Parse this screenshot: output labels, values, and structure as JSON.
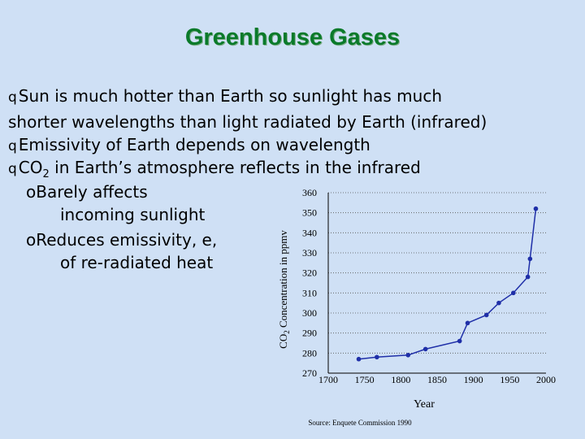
{
  "slide": {
    "title": "Greenhouse Gases",
    "bullets": [
      {
        "line1": "Sun is much hotter than Earth so sunlight has much",
        "line2": "shorter wavelengths than light radiated by Earth (infrared)"
      },
      {
        "line1": "Emissivity of Earth depends on wavelength"
      },
      {
        "line1_pre": "CO",
        "line1_sub": "2",
        "line1_post": " in Earth’s atmosphere reflects in the infrared"
      }
    ],
    "subbullets": [
      {
        "line1": "Barely affects",
        "line2": "incoming sunlight"
      },
      {
        "line1": "Reduces emissivity, e,",
        "line2": "of re-radiated heat"
      }
    ],
    "bullet_marker": "q",
    "subbullet_marker": "o",
    "title_color": "#0a7a2a",
    "background_color": "#cfe0f5"
  },
  "chart_data": {
    "type": "line",
    "xlabel": "Year",
    "ylabel_pre": "CO",
    "ylabel_sub": "2",
    "ylabel_post": " Concentration in ppmv",
    "source": "Source: Enquete Commission 1990",
    "xlim": [
      1700,
      2000
    ],
    "ylim": [
      270,
      360
    ],
    "x_ticks": [
      1700,
      1750,
      1800,
      1850,
      1900,
      1950,
      2000
    ],
    "y_ticks": [
      270,
      280,
      290,
      300,
      310,
      320,
      330,
      340,
      350,
      360
    ],
    "grid": "horizontal dotted",
    "series": [
      {
        "color": "#1f2fa8",
        "x": [
          1742,
          1767,
          1810,
          1834,
          1881,
          1892,
          1918,
          1935,
          1955,
          1975,
          1978,
          1986
        ],
        "y": [
          277,
          278,
          279,
          282,
          286,
          295,
          299,
          305,
          310,
          318,
          327,
          352
        ]
      }
    ]
  }
}
